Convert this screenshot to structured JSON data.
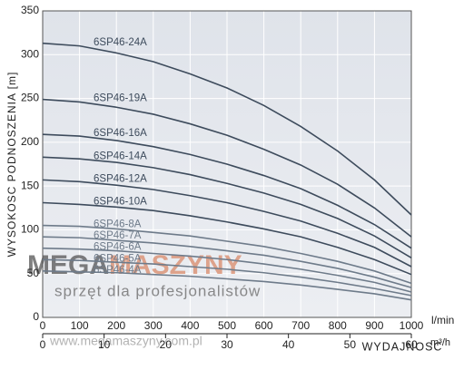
{
  "chart_data": {
    "type": "line",
    "ylabel": "WYSOKOSC PODNOSZENIA [m]",
    "xlabel": "WYDAJNOSC",
    "xunit": "l/min",
    "x2unit": "m³/h",
    "x": [
      0,
      100,
      200,
      300,
      400,
      500,
      600,
      700,
      800,
      900,
      1000
    ],
    "xlim": [
      0,
      1000
    ],
    "xticks": [
      0,
      100,
      200,
      300,
      400,
      500,
      600,
      700,
      800,
      900,
      1000
    ],
    "x2lim": [
      0,
      60
    ],
    "x2ticks": [
      0,
      10,
      20,
      30,
      40,
      50,
      60
    ],
    "ylim": [
      0,
      350
    ],
    "yticks": [
      0,
      50,
      100,
      150,
      200,
      250,
      300,
      350
    ],
    "grid": true,
    "series": [
      {
        "name": "6SP46-24A",
        "color": "#3d4b5c",
        "values": [
          313,
          310,
          302,
          292,
          278,
          262,
          242,
          218,
          190,
          157,
          117
        ]
      },
      {
        "name": "6SP46-19A",
        "color": "#3d4b5c",
        "values": [
          249,
          246,
          240,
          232,
          221,
          208,
          192,
          174,
          152,
          125,
          92
        ]
      },
      {
        "name": "6SP46-16A",
        "color": "#3d4b5c",
        "values": [
          209,
          207,
          202,
          195,
          186,
          175,
          162,
          147,
          128,
          106,
          79
        ]
      },
      {
        "name": "6SP46-14A",
        "color": "#3d4b5c",
        "values": [
          183,
          181,
          177,
          171,
          163,
          153,
          142,
          129,
          113,
          93,
          68
        ]
      },
      {
        "name": "6SP46-12A",
        "color": "#3d4b5c",
        "values": [
          157,
          155,
          151,
          146,
          139,
          131,
          121,
          110,
          96,
          80,
          58
        ]
      },
      {
        "name": "6SP46-10A",
        "color": "#3d4b5c",
        "values": [
          131,
          129,
          126,
          122,
          116,
          109,
          101,
          92,
          80,
          66,
          49
        ]
      },
      {
        "name": "6SP46-8A",
        "color": "#6e7b8a",
        "values": [
          105,
          104,
          101,
          97,
          93,
          87,
          81,
          73,
          64,
          53,
          39
        ]
      },
      {
        "name": "6SP46-7A",
        "color": "#6e7b8a",
        "values": [
          92,
          91,
          88,
          85,
          81,
          76,
          71,
          64,
          56,
          46,
          34
        ]
      },
      {
        "name": "6SP46-6A",
        "color": "#6e7b8a",
        "values": [
          79,
          78,
          76,
          73,
          70,
          66,
          61,
          55,
          48,
          40,
          29
        ]
      },
      {
        "name": "6SP46-5A",
        "color": "#6e7b8a",
        "values": [
          66,
          65,
          63,
          61,
          58,
          55,
          51,
          46,
          40,
          33,
          25
        ]
      },
      {
        "name": "6SP46-4A",
        "color": "#6e7b8a",
        "values": [
          53,
          52,
          51,
          49,
          47,
          44,
          41,
          37,
          32,
          27,
          20
        ]
      }
    ]
  },
  "watermark": {
    "brand_a": "MEGA",
    "brand_b": "MASZYNY",
    "tagline": "sprzęt dla profesjonalistów",
    "url": "www.megamaszyny.com.pl"
  }
}
